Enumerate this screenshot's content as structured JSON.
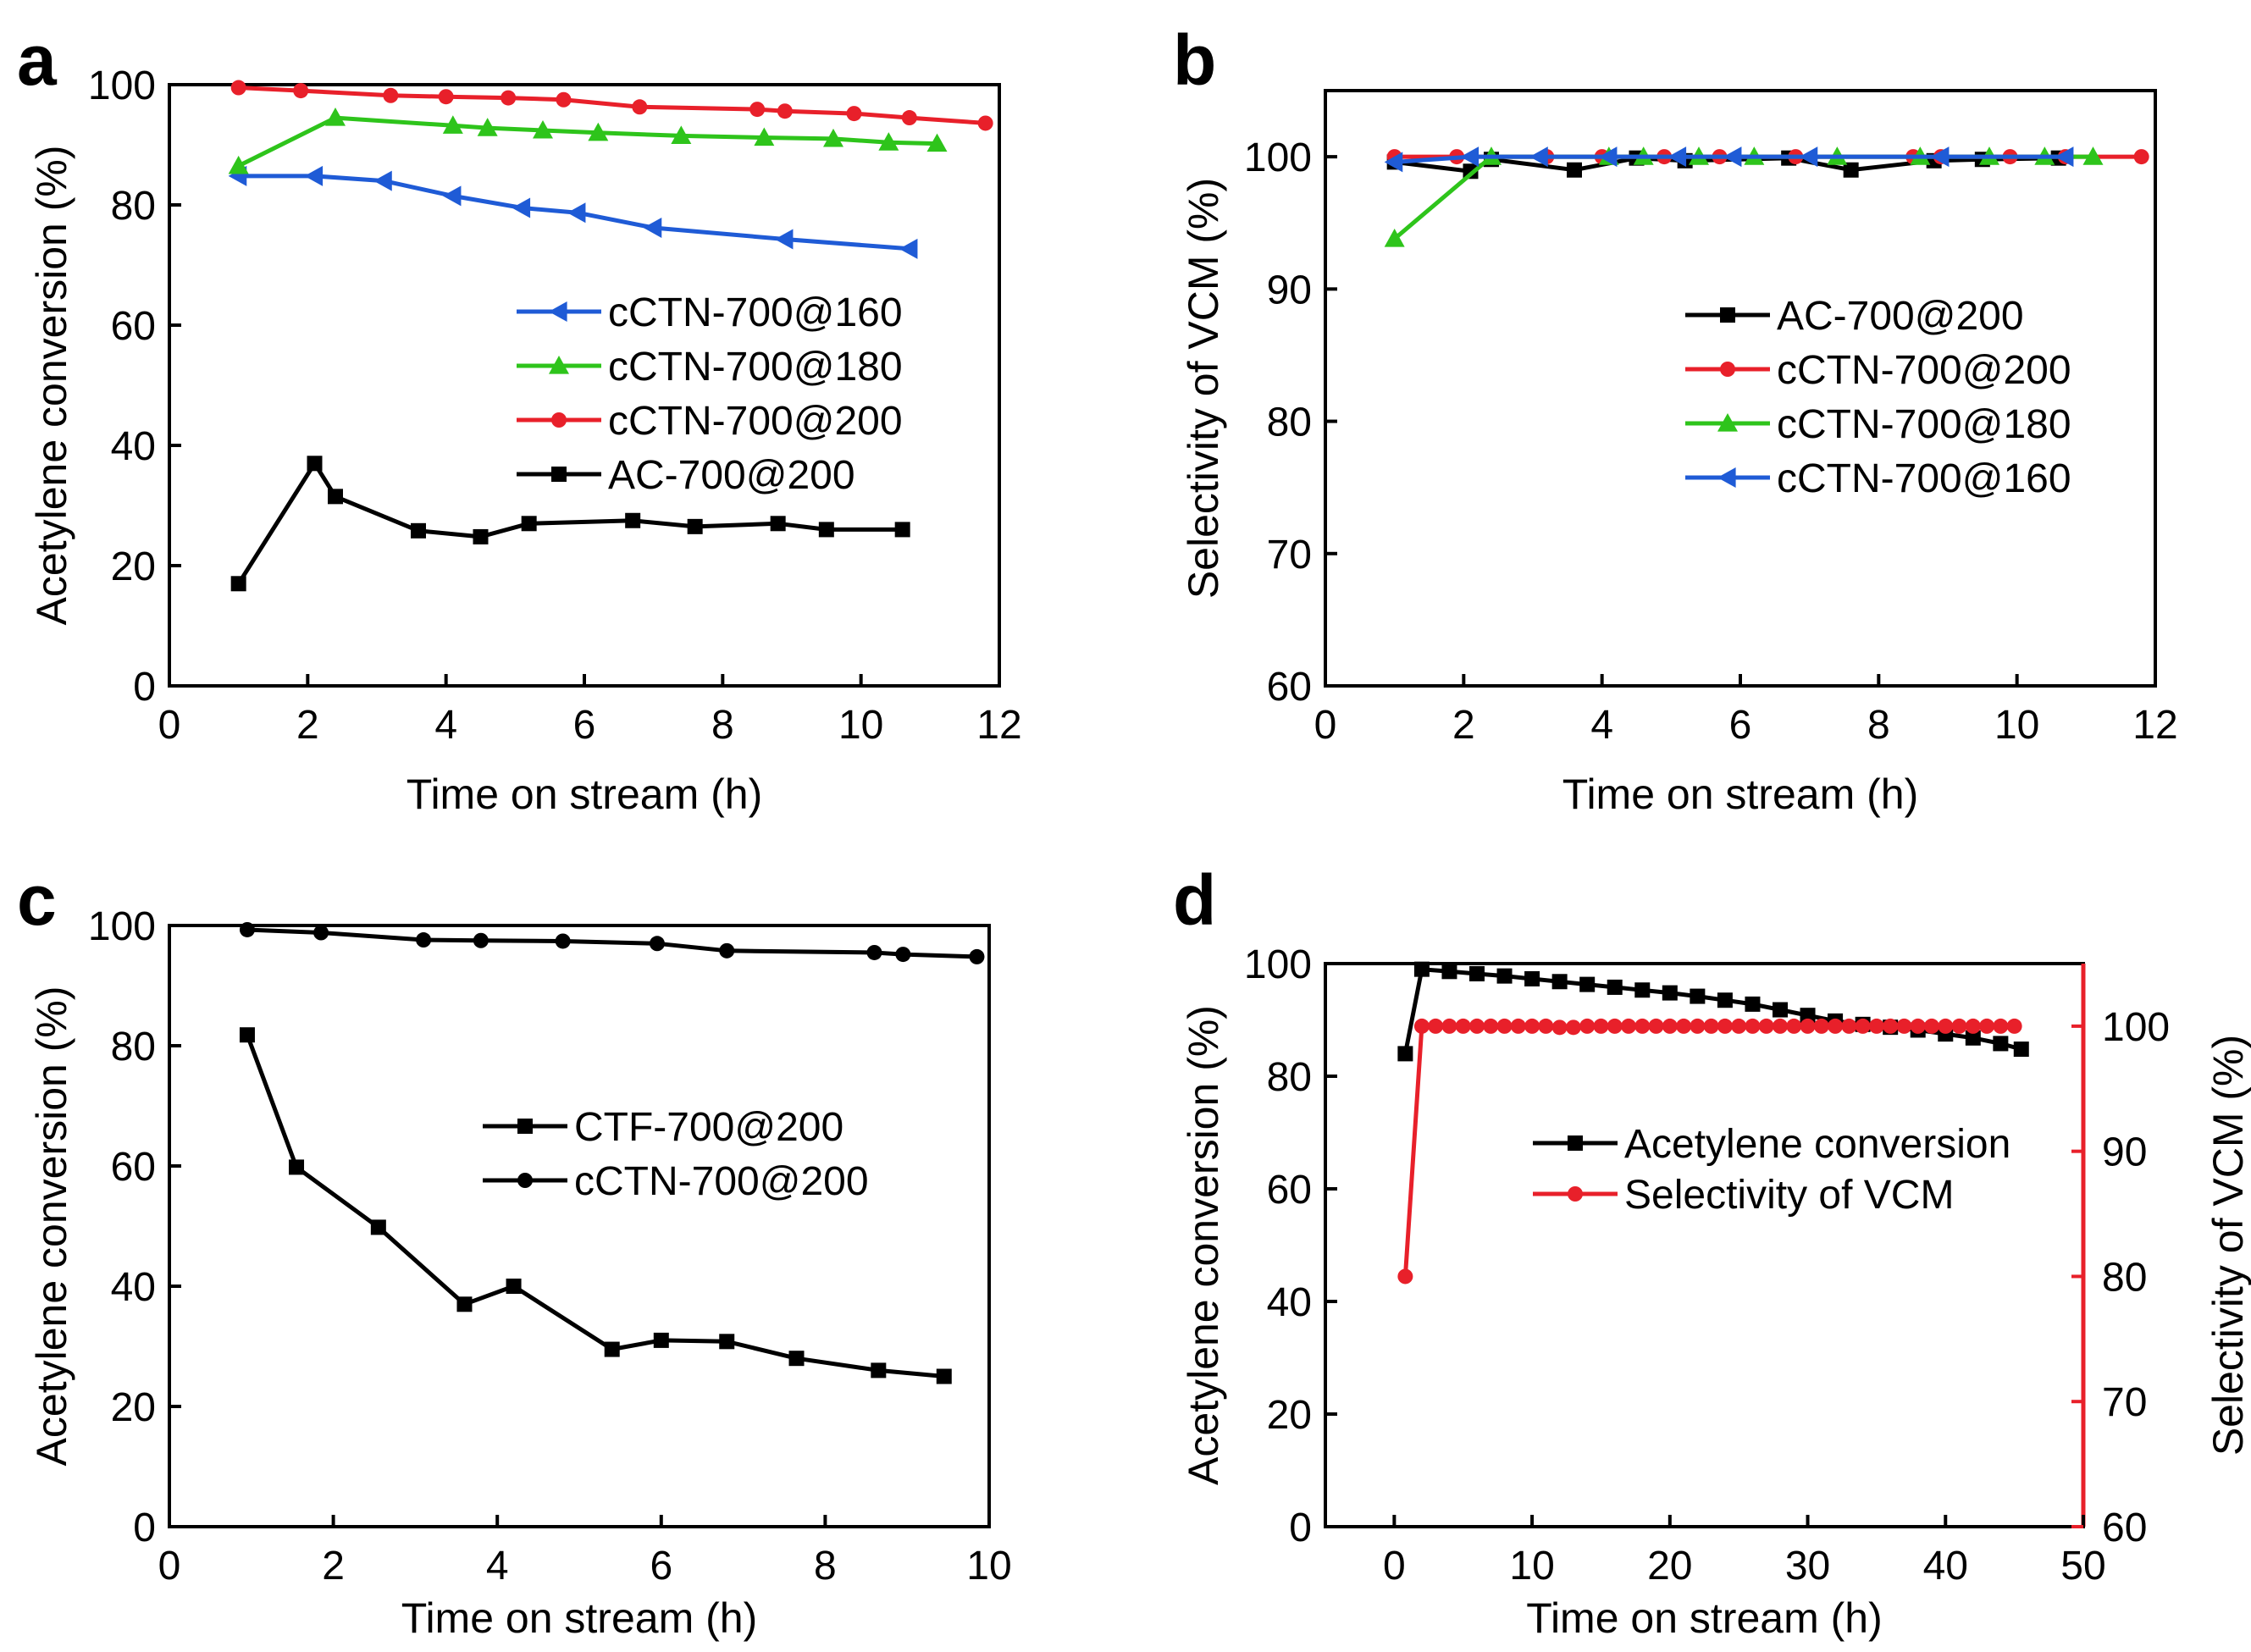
{
  "figure": {
    "panel_letters": [
      "a",
      "b",
      "c",
      "d"
    ]
  },
  "chart_data": [
    {
      "panel": "a",
      "type": "line",
      "title": "",
      "xlabel": "Time on stream (h)",
      "ylabel": "Acetylene conversion (%)",
      "xlim": [
        0,
        12
      ],
      "ylim": [
        0,
        100
      ],
      "xticks": [
        0,
        2,
        4,
        6,
        8,
        10,
        12
      ],
      "yticks": [
        0,
        20,
        40,
        60,
        80,
        100
      ],
      "legend_position": "center-right",
      "series": [
        {
          "name": "cCTN-700@160",
          "color": "#1f5bd6",
          "marker": "triangle-left",
          "x": [
            1.0,
            2.1,
            3.1,
            4.1,
            5.1,
            5.9,
            7.0,
            8.9,
            10.7
          ],
          "y": [
            84.8,
            84.8,
            84.0,
            81.5,
            79.5,
            78.7,
            76.2,
            74.3,
            72.7
          ]
        },
        {
          "name": "cCTN-700@180",
          "color": "#2ec41b",
          "marker": "triangle-up",
          "x": [
            1.0,
            2.4,
            4.1,
            4.6,
            5.4,
            6.2,
            7.4,
            8.6,
            9.6,
            10.4,
            11.1
          ],
          "y": [
            86.5,
            94.5,
            93.2,
            92.8,
            92.4,
            92.0,
            91.5,
            91.2,
            91.0,
            90.4,
            90.2
          ]
        },
        {
          "name": "cCTN-700@200",
          "color": "#e8202a",
          "marker": "circle",
          "x": [
            1.0,
            1.9,
            3.2,
            4.0,
            4.9,
            5.7,
            6.8,
            8.5,
            8.9,
            9.9,
            10.7,
            11.8
          ],
          "y": [
            99.5,
            99.0,
            98.2,
            98.0,
            97.8,
            97.5,
            96.3,
            95.9,
            95.6,
            95.2,
            94.5,
            93.6
          ]
        },
        {
          "name": "AC-700@200",
          "color": "#000000",
          "marker": "square",
          "x": [
            1.0,
            2.1,
            2.4,
            3.6,
            4.5,
            5.2,
            6.7,
            7.6,
            8.8,
            9.5,
            10.6
          ],
          "y": [
            17.0,
            37.0,
            31.5,
            25.8,
            24.8,
            27.0,
            27.5,
            26.5,
            27.0,
            26.0,
            26.0
          ]
        }
      ]
    },
    {
      "panel": "b",
      "type": "line",
      "title": "",
      "xlabel": "Time on stream (h)",
      "ylabel": "Selectivity of VCM (%)",
      "xlim": [
        0,
        12
      ],
      "ylim": [
        60,
        105
      ],
      "xticks": [
        0,
        2,
        4,
        6,
        8,
        10,
        12
      ],
      "yticks": [
        60,
        70,
        80,
        90,
        100
      ],
      "legend_position": "center-right",
      "series": [
        {
          "name": "AC-700@200",
          "color": "#000000",
          "marker": "square",
          "x": [
            1.0,
            2.1,
            2.4,
            3.6,
            4.5,
            5.2,
            6.7,
            7.6,
            8.8,
            9.5,
            10.6
          ],
          "y": [
            99.6,
            98.9,
            99.8,
            99.0,
            99.9,
            99.7,
            99.9,
            99.0,
            99.7,
            99.8,
            99.9
          ]
        },
        {
          "name": "cCTN-700@200",
          "color": "#e8202a",
          "marker": "circle",
          "x": [
            1.0,
            1.9,
            3.2,
            4.0,
            4.9,
            5.7,
            6.8,
            8.5,
            8.9,
            9.9,
            10.7,
            11.8
          ],
          "y": [
            100,
            100,
            100,
            100,
            100,
            100,
            100,
            100,
            100,
            100,
            100,
            100
          ]
        },
        {
          "name": "cCTN-700@180",
          "color": "#2ec41b",
          "marker": "triangle-up",
          "x": [
            1.0,
            2.4,
            4.1,
            4.6,
            5.4,
            6.2,
            7.4,
            8.6,
            9.6,
            10.4,
            11.1
          ],
          "y": [
            93.8,
            100,
            100,
            100,
            100,
            100,
            100,
            100,
            100,
            100,
            100
          ]
        },
        {
          "name": "cCTN-700@160",
          "color": "#1f5bd6",
          "marker": "triangle-left",
          "x": [
            1.0,
            2.1,
            3.1,
            4.1,
            5.1,
            5.9,
            7.0,
            8.9,
            10.7
          ],
          "y": [
            99.6,
            100,
            100,
            100,
            100,
            100,
            100,
            100,
            100
          ]
        }
      ]
    },
    {
      "panel": "c",
      "type": "line",
      "title": "",
      "xlabel": "Time on stream (h)",
      "ylabel": "Acetylene conversion (%)",
      "xlim": [
        0,
        10
      ],
      "ylim": [
        0,
        100
      ],
      "xticks": [
        0,
        2,
        4,
        6,
        8,
        10
      ],
      "yticks": [
        0,
        20,
        40,
        60,
        80,
        100
      ],
      "legend_position": "center-right",
      "series": [
        {
          "name": "CTF-700@200",
          "color": "#000000",
          "marker": "square",
          "x": [
            0.95,
            1.55,
            2.55,
            3.6,
            4.2,
            5.4,
            6.0,
            6.8,
            7.65,
            8.65,
            9.45
          ],
          "y": [
            81.8,
            59.8,
            49.8,
            37.0,
            40.0,
            29.5,
            31.0,
            30.8,
            28.0,
            26.0,
            25.0
          ]
        },
        {
          "name": "cCTN-700@200",
          "color": "#000000",
          "marker": "circle",
          "x": [
            0.95,
            1.85,
            3.1,
            3.8,
            4.8,
            5.95,
            6.8,
            8.6,
            8.95,
            9.85
          ],
          "y": [
            99.3,
            98.8,
            97.6,
            97.5,
            97.4,
            97.0,
            95.8,
            95.5,
            95.2,
            94.8
          ]
        }
      ]
    },
    {
      "panel": "d",
      "type": "line",
      "title": "",
      "xlabel": "Time on stream (h)",
      "ylabel": "Acetylene conversion (%)",
      "ylabel_right": "Selectivity of VCM (%)",
      "xlim": [
        -5,
        50
      ],
      "ylim": [
        0,
        100
      ],
      "ylim_right": [
        60,
        105
      ],
      "xticks": [
        0,
        10,
        20,
        30,
        40,
        50
      ],
      "yticks": [
        0,
        20,
        40,
        60,
        80,
        100
      ],
      "yticks_right": [
        60,
        70,
        80,
        90,
        100
      ],
      "right_axis_color": "#e8202a",
      "legend_position": "center-right",
      "series": [
        {
          "name": "Acetylene conversion",
          "color": "#000000",
          "marker": "square",
          "axis": "left",
          "x": [
            0.8,
            2.0,
            4.0,
            6.0,
            8.0,
            10.0,
            12.0,
            14.0,
            16.0,
            18.0,
            20.0,
            22.0,
            24.0,
            26.0,
            28.0,
            30.0,
            32.0,
            34.0,
            36.0,
            38.0,
            40.0,
            42.0,
            44.0,
            45.5
          ],
          "y": [
            84.0,
            99.0,
            98.6,
            98.2,
            97.8,
            97.3,
            96.8,
            96.3,
            95.8,
            95.3,
            94.8,
            94.2,
            93.5,
            92.8,
            91.8,
            90.8,
            89.8,
            89.2,
            88.7,
            88.2,
            87.5,
            86.8,
            85.8,
            84.8
          ]
        },
        {
          "name": "Selectivity of VCM",
          "color": "#e8202a",
          "marker": "circle",
          "axis": "right",
          "x": [
            0.8,
            2.0,
            3.0,
            4.0,
            5.0,
            6.0,
            7.0,
            8.0,
            9.0,
            10.0,
            11.0,
            12.0,
            13.0,
            14.0,
            15.0,
            16.0,
            17.0,
            18.0,
            19.0,
            20.0,
            21.0,
            22.0,
            23.0,
            24.0,
            25.0,
            26.0,
            27.0,
            28.0,
            29.0,
            30.0,
            31.0,
            32.0,
            33.0,
            34.0,
            35.0,
            36.0,
            37.0,
            38.0,
            39.0,
            40.0,
            41.0,
            42.0,
            43.0,
            44.0,
            45.0
          ],
          "y": [
            80.0,
            100,
            100,
            100,
            100,
            100,
            100,
            100,
            100,
            100,
            100,
            99.9,
            99.9,
            100,
            100,
            100,
            100,
            100,
            100,
            100,
            100,
            100,
            100,
            100,
            100,
            100,
            100,
            100,
            100,
            100,
            100,
            100,
            100,
            100,
            100,
            100,
            100,
            100,
            100,
            100,
            100,
            100,
            100,
            100,
            100
          ]
        }
      ]
    }
  ]
}
